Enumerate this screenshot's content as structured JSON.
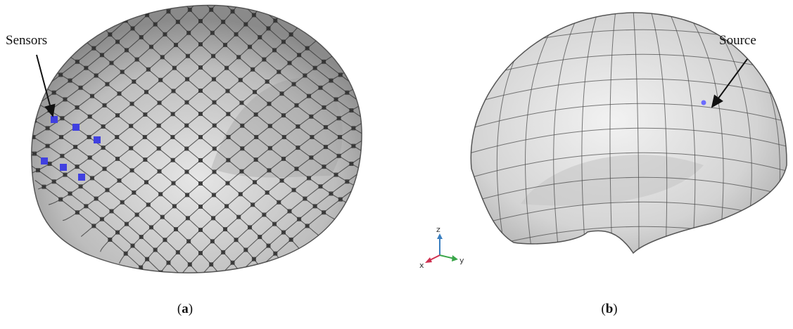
{
  "panels": [
    {
      "annotation": "Sensors",
      "caption": {
        "open": "(",
        "letter": "a",
        "close": ")"
      }
    },
    {
      "annotation": "Source",
      "caption": {
        "open": "(",
        "letter": "b",
        "close": ")"
      }
    }
  ],
  "axes": {
    "z": "z",
    "x": "x",
    "y": "y"
  }
}
